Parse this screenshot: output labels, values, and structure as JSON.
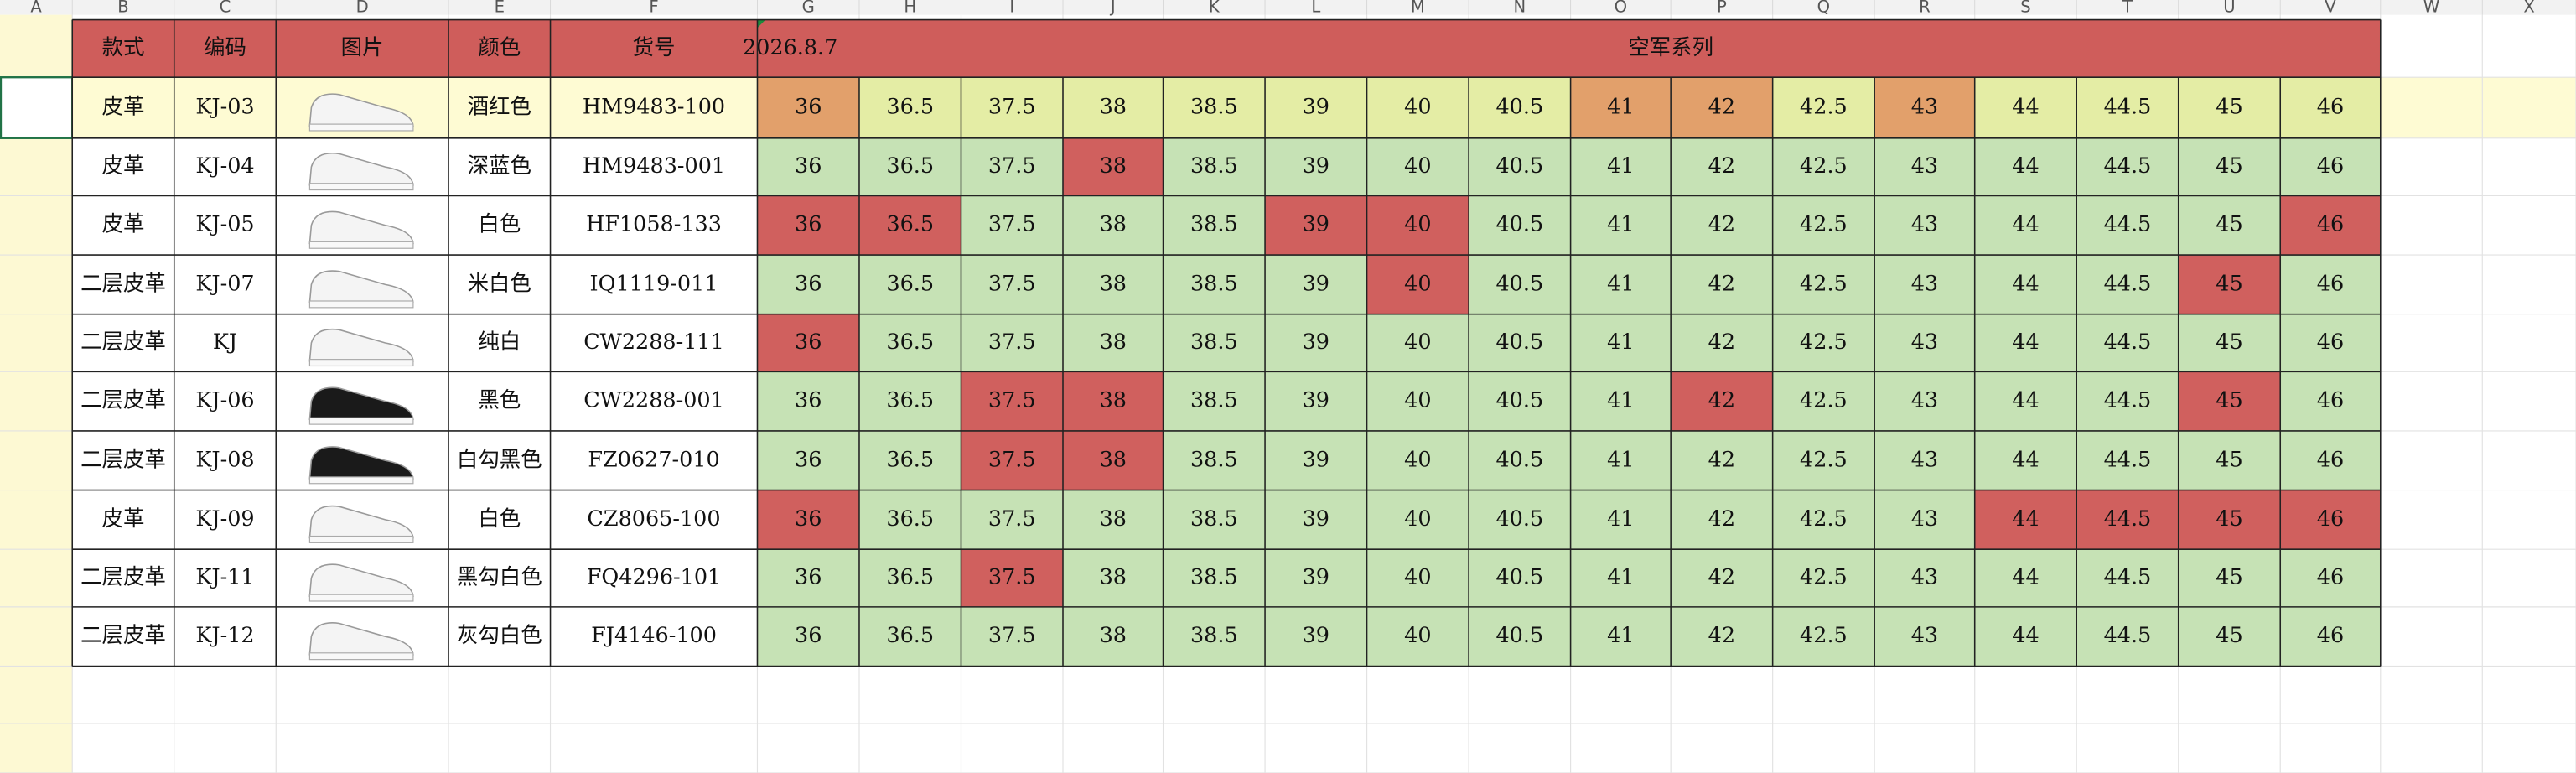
{
  "column_letters": [
    "A",
    "B",
    "C",
    "D",
    "E",
    "F",
    "G",
    "H",
    "I",
    "J",
    "K",
    "L",
    "M",
    "N",
    "O",
    "P",
    "Q",
    "R",
    "S",
    "T",
    "U",
    "V",
    "W",
    "X"
  ],
  "header": {
    "cells": [
      "款式",
      "编码",
      "图片",
      "颜色",
      "货号"
    ],
    "date": "2026.8.7",
    "series_title": "空军系列",
    "fill": "#cf5d5b"
  },
  "rows": [
    {
      "style": "皮革",
      "code": "KJ-03",
      "color_name": "酒红色",
      "sku": "HM9483-100",
      "shoe": "#f4f4f4",
      "base": "#fefbd3",
      "sizes": [
        "36",
        "36.5",
        "37.5",
        "38",
        "38.5",
        "39",
        "40",
        "40.5",
        "41",
        "42",
        "42.5",
        "43",
        "44",
        "44.5",
        "45",
        "46"
      ],
      "fills": [
        "#e2a06b",
        "#e4eda5",
        "#e4eda5",
        "#e4eda5",
        "#e4eda5",
        "#e4eda5",
        "#e4eda5",
        "#e4eda5",
        "#e2a06b",
        "#e2a06b",
        "#e4eda5",
        "#e2a06b",
        "#e4eda5",
        "#e4eda5",
        "#e4eda5",
        "#e4eda5"
      ]
    },
    {
      "style": "皮革",
      "code": "KJ-04",
      "color_name": "深蓝色",
      "sku": "HM9483-001",
      "shoe": "#f4f4f4",
      "base": "#ffffff",
      "sizes": [
        "36",
        "36.5",
        "37.5",
        "38",
        "38.5",
        "39",
        "40",
        "40.5",
        "41",
        "42",
        "42.5",
        "43",
        "44",
        "44.5",
        "45",
        "46"
      ],
      "fills": [
        "#c6e2b5",
        "#c6e2b5",
        "#c6e2b5",
        "#d0605e",
        "#c6e2b5",
        "#c6e2b5",
        "#c6e2b5",
        "#c6e2b5",
        "#c6e2b5",
        "#c6e2b5",
        "#c6e2b5",
        "#c6e2b5",
        "#c6e2b5",
        "#c6e2b5",
        "#c6e2b5",
        "#c6e2b5"
      ]
    },
    {
      "style": "皮革",
      "code": "KJ-05",
      "color_name": "白色",
      "sku": "HF1058-133",
      "shoe": "#f4f4f4",
      "base": "#ffffff",
      "sizes": [
        "36",
        "36.5",
        "37.5",
        "38",
        "38.5",
        "39",
        "40",
        "40.5",
        "41",
        "42",
        "42.5",
        "43",
        "44",
        "44.5",
        "45",
        "46"
      ],
      "fills": [
        "#d0605e",
        "#d0605e",
        "#c6e2b5",
        "#c6e2b5",
        "#c6e2b5",
        "#d0605e",
        "#d0605e",
        "#c6e2b5",
        "#c6e2b5",
        "#c6e2b5",
        "#c6e2b5",
        "#c6e2b5",
        "#c6e2b5",
        "#c6e2b5",
        "#c6e2b5",
        "#d0605e"
      ]
    },
    {
      "style": "二层皮革",
      "code": "KJ-07",
      "color_name": "米白色",
      "sku": "IQ1119-011",
      "shoe": "#f4f4f4",
      "base": "#ffffff",
      "sizes": [
        "36",
        "36.5",
        "37.5",
        "38",
        "38.5",
        "39",
        "40",
        "40.5",
        "41",
        "42",
        "42.5",
        "43",
        "44",
        "44.5",
        "45",
        "46"
      ],
      "fills": [
        "#c6e2b5",
        "#c6e2b5",
        "#c6e2b5",
        "#c6e2b5",
        "#c6e2b5",
        "#c6e2b5",
        "#d0605e",
        "#c6e2b5",
        "#c6e2b5",
        "#c6e2b5",
        "#c6e2b5",
        "#c6e2b5",
        "#c6e2b5",
        "#c6e2b5",
        "#d0605e",
        "#c6e2b5"
      ]
    },
    {
      "style": "二层皮革",
      "code": "KJ",
      "color_name": "纯白",
      "sku": "CW2288-111",
      "shoe": "#f4f4f4",
      "base": "#ffffff",
      "sizes": [
        "36",
        "36.5",
        "37.5",
        "38",
        "38.5",
        "39",
        "40",
        "40.5",
        "41",
        "42",
        "42.5",
        "43",
        "44",
        "44.5",
        "45",
        "46"
      ],
      "fills": [
        "#d0605e",
        "#c6e2b5",
        "#c6e2b5",
        "#c6e2b5",
        "#c6e2b5",
        "#c6e2b5",
        "#c6e2b5",
        "#c6e2b5",
        "#c6e2b5",
        "#c6e2b5",
        "#c6e2b5",
        "#c6e2b5",
        "#c6e2b5",
        "#c6e2b5",
        "#c6e2b5",
        "#c6e2b5"
      ]
    },
    {
      "style": "二层皮革",
      "code": "KJ-06",
      "color_name": "黑色",
      "sku": "CW2288-001",
      "shoe": "#1a1a1a",
      "base": "#ffffff",
      "sizes": [
        "36",
        "36.5",
        "37.5",
        "38",
        "38.5",
        "39",
        "40",
        "40.5",
        "41",
        "42",
        "42.5",
        "43",
        "44",
        "44.5",
        "45",
        "46"
      ],
      "fills": [
        "#c6e2b5",
        "#c6e2b5",
        "#d0605e",
        "#d0605e",
        "#c6e2b5",
        "#c6e2b5",
        "#c6e2b5",
        "#c6e2b5",
        "#c6e2b5",
        "#d0605e",
        "#c6e2b5",
        "#c6e2b5",
        "#c6e2b5",
        "#c6e2b5",
        "#d0605e",
        "#c6e2b5"
      ]
    },
    {
      "style": "二层皮革",
      "code": "KJ-08",
      "color_name": "白勾黑色",
      "sku": "FZ0627-010",
      "shoe": "#1a1a1a",
      "base": "#ffffff",
      "sizes": [
        "36",
        "36.5",
        "37.5",
        "38",
        "38.5",
        "39",
        "40",
        "40.5",
        "41",
        "42",
        "42.5",
        "43",
        "44",
        "44.5",
        "45",
        "46"
      ],
      "fills": [
        "#c6e2b5",
        "#c6e2b5",
        "#d0605e",
        "#d0605e",
        "#c6e2b5",
        "#c6e2b5",
        "#c6e2b5",
        "#c6e2b5",
        "#c6e2b5",
        "#c6e2b5",
        "#c6e2b5",
        "#c6e2b5",
        "#c6e2b5",
        "#c6e2b5",
        "#c6e2b5",
        "#c6e2b5"
      ]
    },
    {
      "style": "皮革",
      "code": "KJ-09",
      "color_name": "白色",
      "sku": "CZ8065-100",
      "shoe": "#f4f4f4",
      "base": "#ffffff",
      "sizes": [
        "36",
        "36.5",
        "37.5",
        "38",
        "38.5",
        "39",
        "40",
        "40.5",
        "41",
        "42",
        "42.5",
        "43",
        "44",
        "44.5",
        "45",
        "46"
      ],
      "fills": [
        "#d0605e",
        "#c6e2b5",
        "#c6e2b5",
        "#c6e2b5",
        "#c6e2b5",
        "#c6e2b5",
        "#c6e2b5",
        "#c6e2b5",
        "#c6e2b5",
        "#c6e2b5",
        "#c6e2b5",
        "#c6e2b5",
        "#d0605e",
        "#d0605e",
        "#d0605e",
        "#d0605e"
      ]
    },
    {
      "style": "二层皮革",
      "code": "KJ-11",
      "color_name": "黑勾白色",
      "sku": "FQ4296-101",
      "shoe": "#f4f4f4",
      "base": "#ffffff",
      "sizes": [
        "36",
        "36.5",
        "37.5",
        "38",
        "38.5",
        "39",
        "40",
        "40.5",
        "41",
        "42",
        "42.5",
        "43",
        "44",
        "44.5",
        "45",
        "46"
      ],
      "fills": [
        "#c6e2b5",
        "#c6e2b5",
        "#d0605e",
        "#c6e2b5",
        "#c6e2b5",
        "#c6e2b5",
        "#c6e2b5",
        "#c6e2b5",
        "#c6e2b5",
        "#c6e2b5",
        "#c6e2b5",
        "#c6e2b5",
        "#c6e2b5",
        "#c6e2b5",
        "#c6e2b5",
        "#c6e2b5"
      ]
    },
    {
      "style": "二层皮革",
      "code": "KJ-12",
      "color_name": "灰勾白色",
      "sku": "FJ4146-100",
      "shoe": "#f4f4f4",
      "base": "#ffffff",
      "sizes": [
        "36",
        "36.5",
        "37.5",
        "38",
        "38.5",
        "39",
        "40",
        "40.5",
        "41",
        "42",
        "42.5",
        "43",
        "44",
        "44.5",
        "45",
        "46"
      ],
      "fills": [
        "#c6e2b5",
        "#c6e2b5",
        "#c6e2b5",
        "#c6e2b5",
        "#c6e2b5",
        "#c6e2b5",
        "#c6e2b5",
        "#c6e2b5",
        "#c6e2b5",
        "#c6e2b5",
        "#c6e2b5",
        "#c6e2b5",
        "#c6e2b5",
        "#c6e2b5",
        "#c6e2b5",
        "#c6e2b5"
      ]
    }
  ]
}
